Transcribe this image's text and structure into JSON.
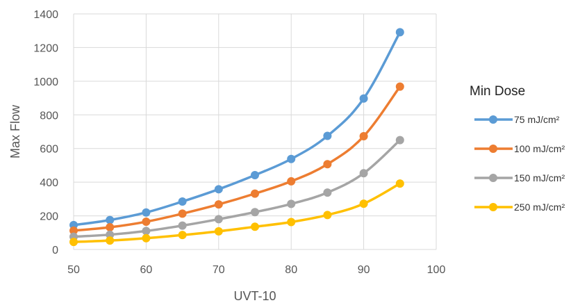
{
  "chart_data": {
    "type": "line",
    "xlabel": "UVT-10",
    "ylabel": "Max Flow",
    "xlim": [
      50,
      100
    ],
    "ylim": [
      0,
      1400
    ],
    "xticks": [
      50,
      60,
      70,
      80,
      90,
      100
    ],
    "yticks": [
      0,
      200,
      400,
      600,
      800,
      1000,
      1200,
      1400
    ],
    "grid": true,
    "legend_title": "Min Dose",
    "legend_position": "right",
    "x": [
      50,
      55,
      60,
      65,
      70,
      75,
      80,
      85,
      90,
      95
    ],
    "series": [
      {
        "name": "75 mJ/cm²",
        "color": "#5b9bd5",
        "values": [
          145,
          175,
          220,
          285,
          358,
          442,
          538,
          675,
          897,
          1291
        ]
      },
      {
        "name": "100 mJ/cm²",
        "color": "#ed7d31",
        "values": [
          112,
          132,
          165,
          213,
          268,
          332,
          405,
          507,
          673,
          968
        ]
      },
      {
        "name": "150 mJ/cm²",
        "color": "#a5a5a5",
        "values": [
          76,
          88,
          110,
          142,
          180,
          222,
          271,
          338,
          453,
          650
        ]
      },
      {
        "name": "250 mJ/cm²",
        "color": "#ffc000",
        "values": [
          45,
          53,
          67,
          86,
          108,
          135,
          163,
          205,
          272,
          392
        ]
      }
    ]
  }
}
